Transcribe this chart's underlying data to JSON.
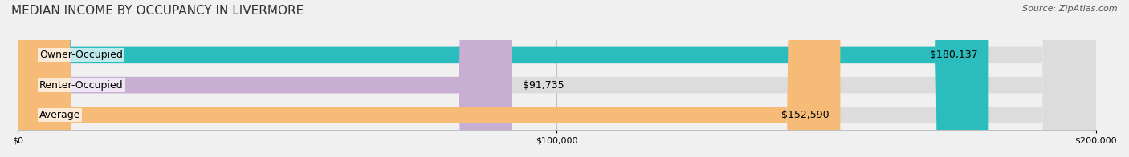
{
  "title": "MEDIAN INCOME BY OCCUPANCY IN LIVERMORE",
  "source": "Source: ZipAtlas.com",
  "categories": [
    "Owner-Occupied",
    "Renter-Occupied",
    "Average"
  ],
  "values": [
    180137,
    91735,
    152590
  ],
  "labels": [
    "$180,137",
    "$91,735",
    "$152,590"
  ],
  "bar_colors": [
    "#2bbcbd",
    "#c9aed4",
    "#f5bb77"
  ],
  "bar_edge_colors": [
    "#2bbcbd",
    "#c9aed4",
    "#f5bb77"
  ],
  "bg_color": "#f0f0f0",
  "bar_bg_color": "#e8e8e8",
  "xlim": [
    0,
    200000
  ],
  "xticks": [
    0,
    100000,
    200000
  ],
  "xtick_labels": [
    "$0",
    "$100,000",
    "$200,000"
  ],
  "title_fontsize": 11,
  "source_fontsize": 8,
  "label_fontsize": 9,
  "category_fontsize": 9
}
